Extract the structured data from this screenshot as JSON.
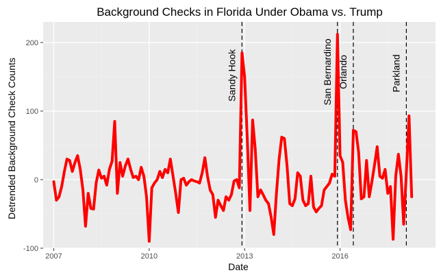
{
  "chart_data": {
    "type": "line",
    "title": "Background Checks in Florida Under Obama vs. Trump",
    "xlabel": "Date",
    "ylabel": "Detrended Background Check Counts",
    "x_ticks": [
      2007,
      2010,
      2013,
      2016
    ],
    "y_ticks": [
      -100,
      0,
      100,
      200
    ],
    "xlim": [
      "2006-09",
      "2019-01"
    ],
    "ylim": [
      -100,
      230
    ],
    "grid": true,
    "line_color": "#ff0000",
    "background_color": "#ebebeb",
    "annotations": [
      {
        "label": "Sandy Hook",
        "date": "2012-12"
      },
      {
        "label": "San Bernardino",
        "date": "2015-12"
      },
      {
        "label": "Orlando",
        "date": "2016-06"
      },
      {
        "label": "Parkland",
        "date": "2018-02"
      }
    ],
    "series": [
      {
        "points": [
          [
            "2007-01",
            -3
          ],
          [
            "2007-02",
            -30
          ],
          [
            "2007-03",
            -25
          ],
          [
            "2007-04",
            -10
          ],
          [
            "2007-05",
            12
          ],
          [
            "2007-06",
            30
          ],
          [
            "2007-07",
            28
          ],
          [
            "2007-08",
            12
          ],
          [
            "2007-09",
            25
          ],
          [
            "2007-10",
            35
          ],
          [
            "2007-11",
            15
          ],
          [
            "2007-12",
            -15
          ],
          [
            "2008-01",
            -68
          ],
          [
            "2008-02",
            -20
          ],
          [
            "2008-03",
            -42
          ],
          [
            "2008-04",
            -43
          ],
          [
            "2008-05",
            -5
          ],
          [
            "2008-06",
            14
          ],
          [
            "2008-07",
            2
          ],
          [
            "2008-08",
            5
          ],
          [
            "2008-09",
            -8
          ],
          [
            "2008-10",
            15
          ],
          [
            "2008-11",
            27
          ],
          [
            "2008-12",
            85
          ],
          [
            "2009-01",
            -20
          ],
          [
            "2009-02",
            25
          ],
          [
            "2009-03",
            5
          ],
          [
            "2009-04",
            20
          ],
          [
            "2009-05",
            30
          ],
          [
            "2009-06",
            15
          ],
          [
            "2009-07",
            3
          ],
          [
            "2009-08",
            5
          ],
          [
            "2009-09",
            0
          ],
          [
            "2009-10",
            18
          ],
          [
            "2009-11",
            5
          ],
          [
            "2009-12",
            -25
          ],
          [
            "2010-01",
            -90
          ],
          [
            "2010-02",
            -12
          ],
          [
            "2010-03",
            -5
          ],
          [
            "2010-04",
            0
          ],
          [
            "2010-05",
            12
          ],
          [
            "2010-06",
            3
          ],
          [
            "2010-07",
            15
          ],
          [
            "2010-08",
            10
          ],
          [
            "2010-09",
            30
          ],
          [
            "2010-10",
            5
          ],
          [
            "2010-11",
            -20
          ],
          [
            "2010-12",
            -48
          ],
          [
            "2011-01",
            0
          ],
          [
            "2011-02",
            2
          ],
          [
            "2011-03",
            -8
          ],
          [
            "2011-04",
            -3
          ],
          [
            "2011-05",
            0
          ],
          [
            "2011-06",
            -2
          ],
          [
            "2011-07",
            -3
          ],
          [
            "2011-08",
            -5
          ],
          [
            "2011-09",
            10
          ],
          [
            "2011-10",
            32
          ],
          [
            "2011-11",
            5
          ],
          [
            "2011-12",
            -15
          ],
          [
            "2012-01",
            -22
          ],
          [
            "2012-02",
            -55
          ],
          [
            "2012-03",
            -30
          ],
          [
            "2012-04",
            -38
          ],
          [
            "2012-05",
            -45
          ],
          [
            "2012-06",
            -25
          ],
          [
            "2012-07",
            -30
          ],
          [
            "2012-08",
            -22
          ],
          [
            "2012-09",
            -2
          ],
          [
            "2012-10",
            0
          ],
          [
            "2012-11",
            -12
          ],
          [
            "2012-12",
            185
          ],
          [
            "2013-01",
            150
          ],
          [
            "2013-02",
            60
          ],
          [
            "2013-03",
            -45
          ],
          [
            "2013-04",
            87
          ],
          [
            "2013-05",
            45
          ],
          [
            "2013-06",
            -25
          ],
          [
            "2013-07",
            -15
          ],
          [
            "2013-08",
            -22
          ],
          [
            "2013-09",
            -30
          ],
          [
            "2013-10",
            -35
          ],
          [
            "2013-11",
            -55
          ],
          [
            "2013-12",
            -80
          ],
          [
            "2014-01",
            -20
          ],
          [
            "2014-02",
            30
          ],
          [
            "2014-03",
            62
          ],
          [
            "2014-04",
            60
          ],
          [
            "2014-05",
            20
          ],
          [
            "2014-06",
            -35
          ],
          [
            "2014-07",
            -38
          ],
          [
            "2014-08",
            -28
          ],
          [
            "2014-09",
            10
          ],
          [
            "2014-10",
            5
          ],
          [
            "2014-11",
            -30
          ],
          [
            "2014-12",
            -38
          ],
          [
            "2015-01",
            -35
          ],
          [
            "2015-02",
            5
          ],
          [
            "2015-03",
            -40
          ],
          [
            "2015-04",
            -47
          ],
          [
            "2015-05",
            -42
          ],
          [
            "2015-06",
            -38
          ],
          [
            "2015-07",
            -15
          ],
          [
            "2015-08",
            -10
          ],
          [
            "2015-09",
            -5
          ],
          [
            "2015-10",
            8
          ],
          [
            "2015-11",
            5
          ],
          [
            "2015-12",
            212
          ],
          [
            "2016-01",
            35
          ],
          [
            "2016-02",
            25
          ],
          [
            "2016-03",
            -30
          ],
          [
            "2016-04",
            -55
          ],
          [
            "2016-05",
            -73
          ],
          [
            "2016-06",
            72
          ],
          [
            "2016-07",
            70
          ],
          [
            "2016-08",
            40
          ],
          [
            "2016-09",
            -28
          ],
          [
            "2016-10",
            -25
          ],
          [
            "2016-11",
            28
          ],
          [
            "2016-12",
            -25
          ],
          [
            "2017-01",
            -3
          ],
          [
            "2017-02",
            22
          ],
          [
            "2017-03",
            48
          ],
          [
            "2017-04",
            5
          ],
          [
            "2017-05",
            2
          ],
          [
            "2017-06",
            15
          ],
          [
            "2017-07",
            -20
          ],
          [
            "2017-08",
            -10
          ],
          [
            "2017-09",
            -87
          ],
          [
            "2017-10",
            5
          ],
          [
            "2017-11",
            37
          ],
          [
            "2017-12",
            5
          ],
          [
            "2018-01",
            -65
          ],
          [
            "2018-02",
            10
          ],
          [
            "2018-03",
            93
          ],
          [
            "2018-04",
            -25
          ]
        ]
      }
    ]
  }
}
